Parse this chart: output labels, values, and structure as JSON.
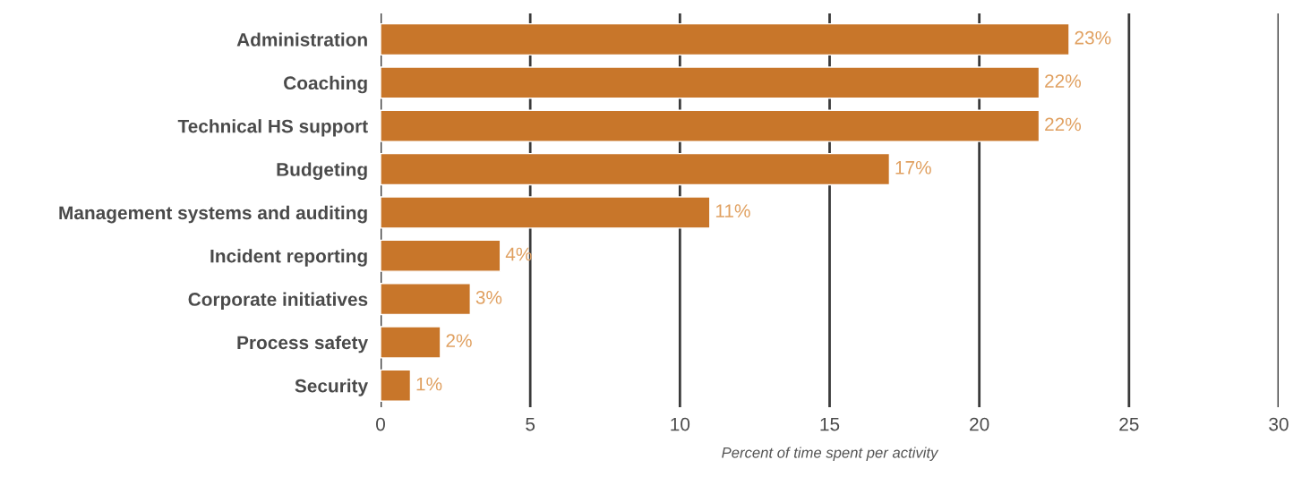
{
  "chart_data": {
    "type": "bar",
    "orientation": "horizontal",
    "categories": [
      "Administration",
      "Coaching",
      "Technical HS support",
      "Budgeting",
      "Management systems and auditing",
      "Incident reporting",
      "Corporate initiatives",
      "Process safety",
      "Security"
    ],
    "values": [
      23,
      22,
      22,
      17,
      11,
      4,
      3,
      2,
      1
    ],
    "value_labels": [
      "23%",
      "22%",
      "22%",
      "17%",
      "11%",
      "4%",
      "3%",
      "2%",
      "1%"
    ],
    "color": "#c8762a",
    "xlim": [
      0,
      30
    ],
    "xticks": [
      0,
      5,
      10,
      15,
      20,
      25,
      30
    ],
    "xlabel": "Percent of time spent per activity",
    "grid": "x",
    "legend": false
  }
}
